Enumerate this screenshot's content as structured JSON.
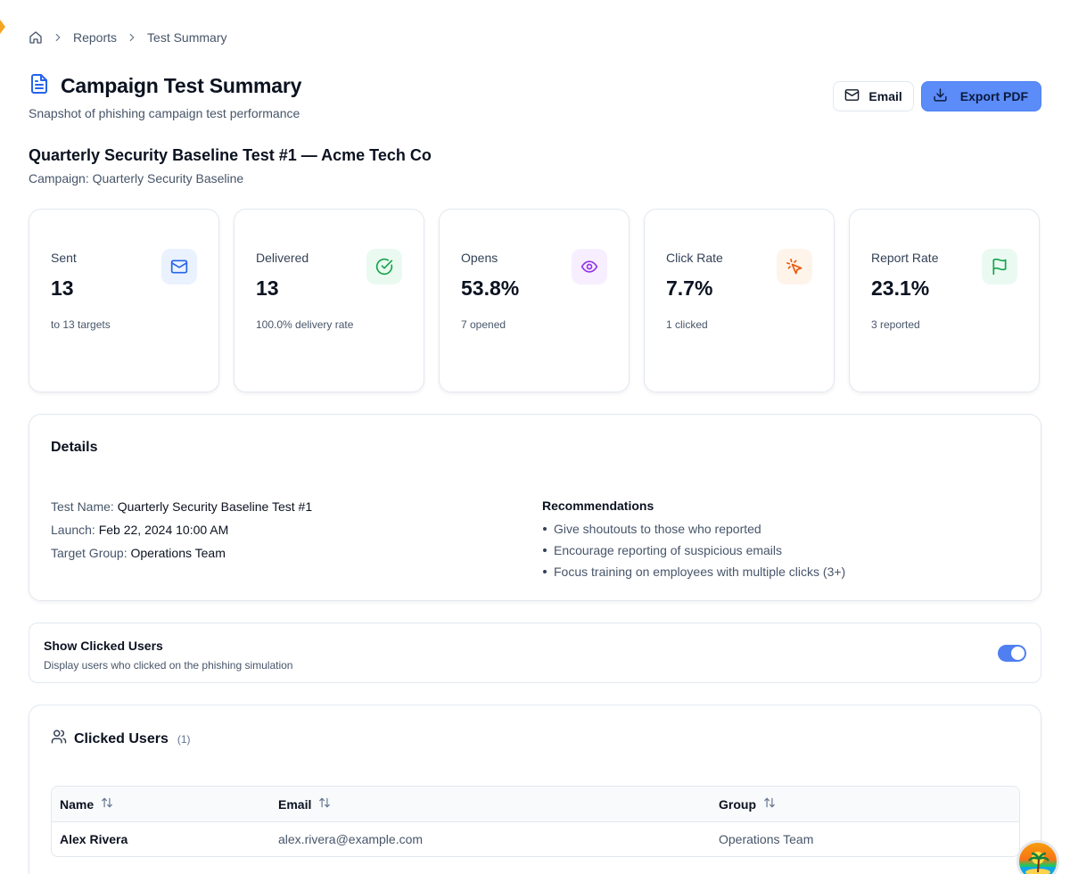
{
  "breadcrumb": {
    "items": [
      "Reports",
      "Test Summary"
    ]
  },
  "header": {
    "title": "Campaign Test Summary",
    "subtitle": "Snapshot of phishing campaign test performance",
    "email_label": "Email",
    "export_label": "Export PDF"
  },
  "test": {
    "title": "Quarterly Security Baseline Test #1 — Acme Tech Co",
    "campaign_line": "Campaign: Quarterly Security Baseline"
  },
  "stats": [
    {
      "label": "Sent",
      "value": "13",
      "sub": "to 13 targets",
      "icon": "mail-icon",
      "color": "#2563eb"
    },
    {
      "label": "Delivered",
      "value": "13",
      "sub": "100.0% delivery rate",
      "icon": "check-circle-icon",
      "color": "#16a34a"
    },
    {
      "label": "Opens",
      "value": "53.8%",
      "sub": "7 opened",
      "icon": "eye-icon",
      "color": "#9333ea"
    },
    {
      "label": "Click Rate",
      "value": "7.7%",
      "sub": "1 clicked",
      "icon": "pointer-click-icon",
      "color": "#ea580c"
    },
    {
      "label": "Report Rate",
      "value": "23.1%",
      "sub": "3 reported",
      "icon": "flag-icon",
      "color": "#16a34a"
    }
  ],
  "details": {
    "title": "Details",
    "rows": [
      {
        "label": "Test Name:",
        "value": "Quarterly Security Baseline Test #1"
      },
      {
        "label": "Launch:",
        "value": "Feb 22, 2024 10:00 AM"
      },
      {
        "label": "Target Group:",
        "value": "Operations Team"
      }
    ],
    "recommendations_title": "Recommendations",
    "recommendations": [
      "Give shoutouts to those who reported",
      "Encourage reporting of suspicious emails",
      "Focus training on employees with multiple clicks (3+)"
    ]
  },
  "toggle": {
    "title": "Show Clicked Users",
    "description": "Display users who clicked on the phishing simulation",
    "on": true
  },
  "clicked_users": {
    "title": "Clicked Users",
    "count": "(1)",
    "columns": [
      "Name",
      "Email",
      "Group"
    ],
    "rows": [
      {
        "name": "Alex Rivera",
        "email": "alex.rivera@example.com",
        "group": "Operations Team"
      }
    ]
  },
  "colors": {
    "primary": "#5b8cf8",
    "toggle_on": "#4f7ff0",
    "accent_icon": "#2563eb"
  }
}
